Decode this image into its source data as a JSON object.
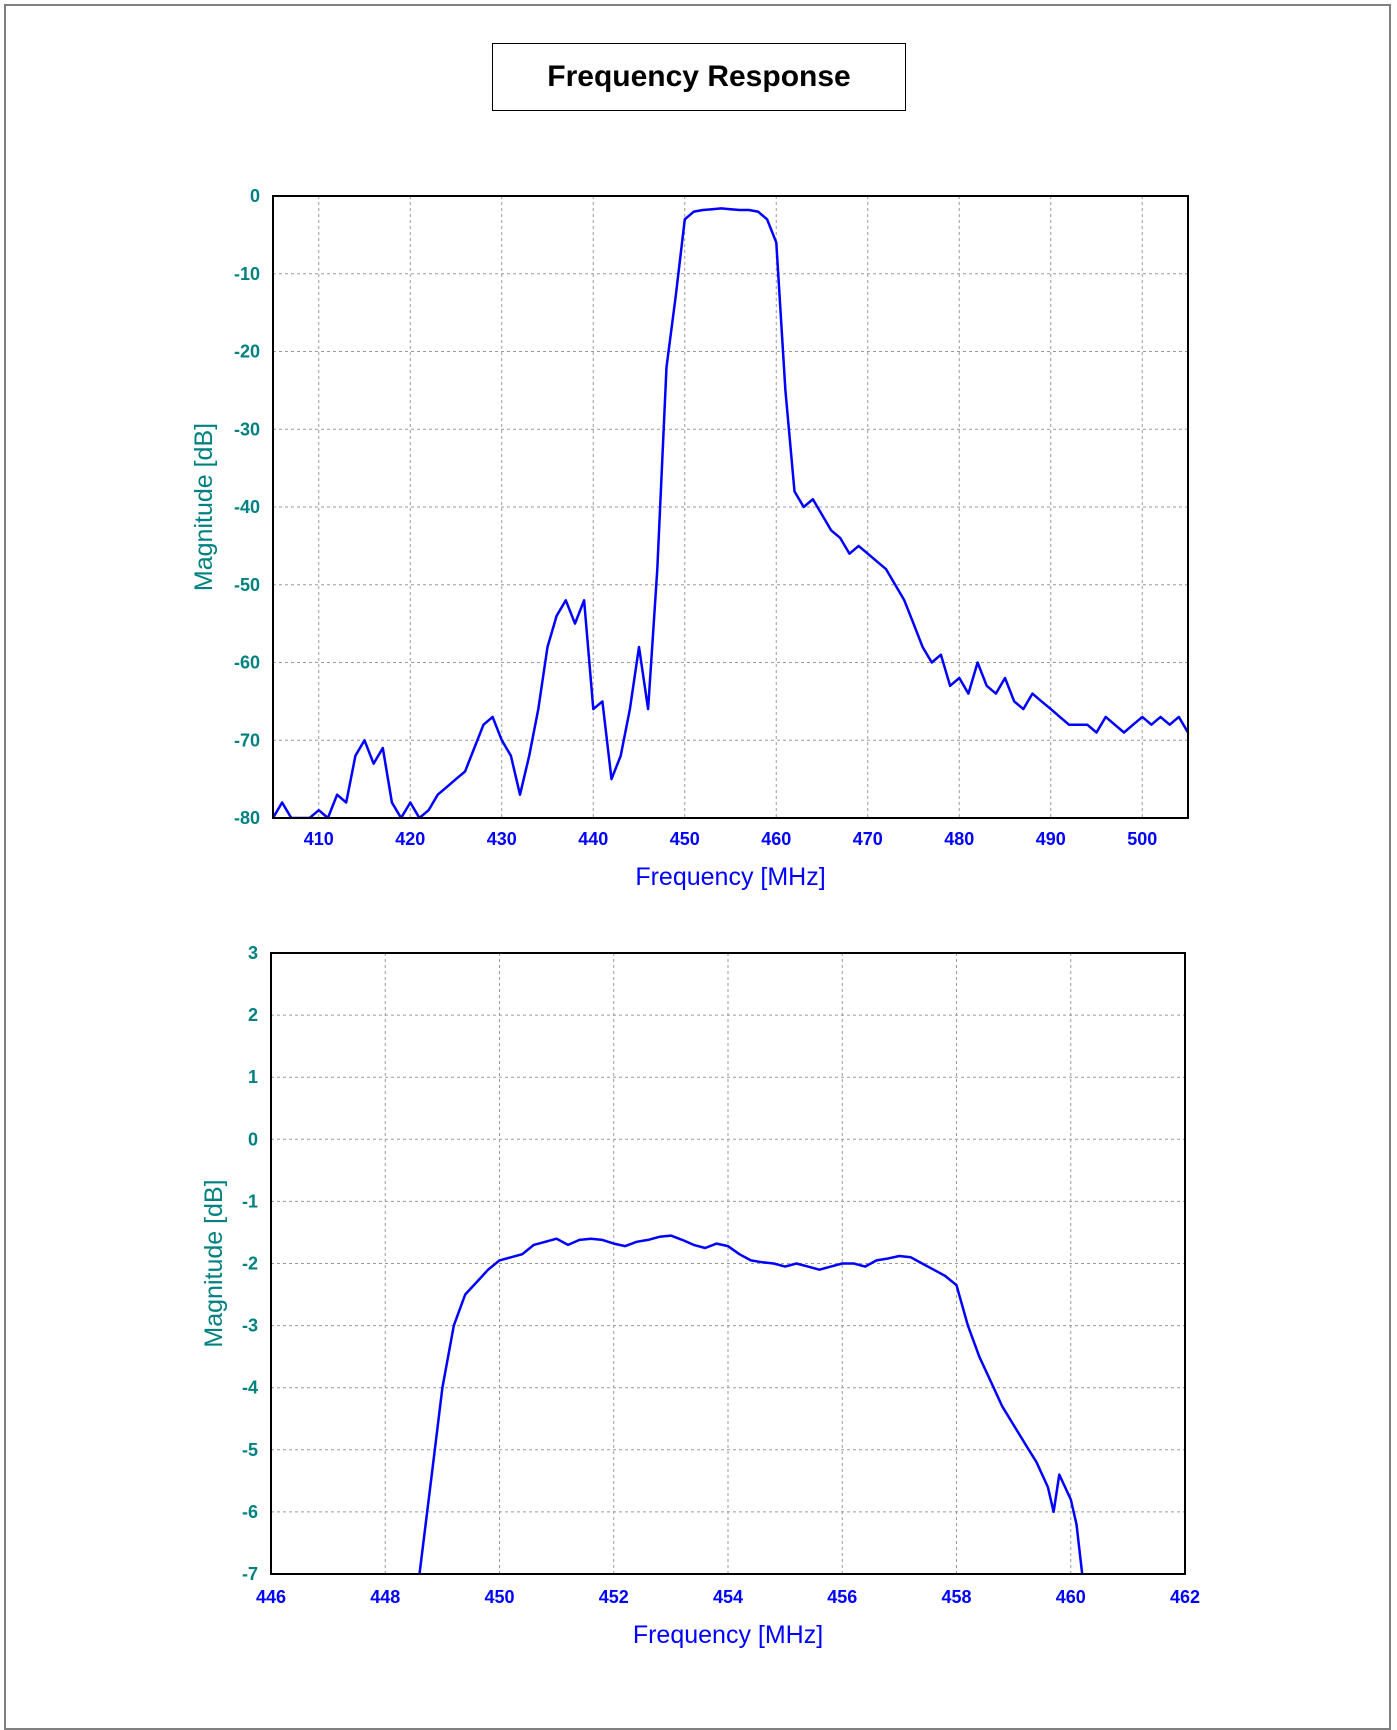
{
  "title": "Frequency Response",
  "colors": {
    "series": "#0000ff",
    "y_text": "#008080",
    "x_text": "#0000ff",
    "frame": "#808080"
  },
  "chart_data": [
    {
      "type": "line",
      "title": "",
      "xlabel": "Frequency [MHz]",
      "ylabel": "Magnitude [dB]",
      "xlim": [
        405,
        505
      ],
      "ylim": [
        -80,
        0
      ],
      "xticks": [
        410,
        420,
        430,
        440,
        450,
        460,
        470,
        480,
        490,
        500
      ],
      "yticks": [
        0,
        -10,
        -20,
        -30,
        -40,
        -50,
        -60,
        -70,
        -80
      ],
      "grid": true,
      "series": [
        {
          "x": [
            405,
            406,
            407,
            408,
            409,
            410,
            411,
            412,
            413,
            414,
            415,
            416,
            417,
            418,
            419,
            420,
            421,
            422,
            423,
            424,
            425,
            426,
            427,
            428,
            429,
            430,
            431,
            432,
            433,
            434,
            435,
            436,
            437,
            438,
            439,
            440,
            441,
            442,
            443,
            444,
            445,
            446,
            447,
            448,
            449,
            450,
            451,
            452,
            453,
            454,
            455,
            456,
            457,
            458,
            459,
            460,
            461,
            462,
            463,
            464,
            465,
            466,
            467,
            468,
            469,
            470,
            471,
            472,
            473,
            474,
            475,
            476,
            477,
            478,
            479,
            480,
            481,
            482,
            483,
            484,
            485,
            486,
            487,
            488,
            489,
            490,
            491,
            492,
            493,
            494,
            495,
            496,
            497,
            498,
            499,
            500,
            501,
            502,
            503,
            504,
            505
          ],
          "y": [
            -80,
            -78,
            -80,
            -80,
            -80,
            -79,
            -80,
            -77,
            -78,
            -72,
            -70,
            -73,
            -71,
            -78,
            -80,
            -78,
            -80,
            -79,
            -77,
            -76,
            -75,
            -74,
            -71,
            -68,
            -67,
            -70,
            -72,
            -77,
            -72,
            -66,
            -58,
            -54,
            -52,
            -55,
            -52,
            -66,
            -65,
            -75,
            -72,
            -66,
            -58,
            -66,
            -48,
            -22,
            -13,
            -3,
            -2,
            -1.8,
            -1.7,
            -1.6,
            -1.7,
            -1.8,
            -1.8,
            -2.0,
            -3.0,
            -6.0,
            -25,
            -38,
            -40,
            -39,
            -41,
            -43,
            -44,
            -46,
            -45,
            -46,
            -47,
            -48,
            -50,
            -52,
            -55,
            -58,
            -60,
            -59,
            -63,
            -62,
            -64,
            -60,
            -63,
            -64,
            -62,
            -65,
            -66,
            -64,
            -65,
            -66,
            -67,
            -68,
            -68,
            -68,
            -69,
            -67,
            -68,
            -69,
            -68,
            -67,
            -68,
            -67,
            -68,
            -67,
            -69
          ]
        }
      ]
    },
    {
      "type": "line",
      "title": "",
      "xlabel": "Frequency [MHz]",
      "ylabel": "Magnitude [dB]",
      "xlim": [
        446,
        462
      ],
      "ylim": [
        -7,
        3
      ],
      "xticks": [
        446,
        448,
        450,
        452,
        454,
        456,
        458,
        460,
        462
      ],
      "yticks": [
        3,
        2,
        1,
        0,
        -1,
        -2,
        -3,
        -4,
        -5,
        -6,
        -7
      ],
      "grid": true,
      "series": [
        {
          "x": [
            448.6,
            448.8,
            449.0,
            449.2,
            449.4,
            449.6,
            449.8,
            450.0,
            450.2,
            450.4,
            450.6,
            450.8,
            451.0,
            451.2,
            451.4,
            451.6,
            451.8,
            452.0,
            452.2,
            452.4,
            452.6,
            452.8,
            453.0,
            453.2,
            453.4,
            453.6,
            453.8,
            454.0,
            454.2,
            454.4,
            454.6,
            454.8,
            455.0,
            455.2,
            455.4,
            455.6,
            455.8,
            456.0,
            456.2,
            456.4,
            456.6,
            456.8,
            457.0,
            457.2,
            457.4,
            457.6,
            457.8,
            458.0,
            458.2,
            458.4,
            458.6,
            458.8,
            459.0,
            459.2,
            459.4,
            459.6,
            459.7,
            459.8,
            460.0,
            460.1,
            460.2
          ],
          "y": [
            -7.0,
            -5.5,
            -4.0,
            -3.0,
            -2.5,
            -2.3,
            -2.1,
            -1.95,
            -1.9,
            -1.85,
            -1.7,
            -1.65,
            -1.6,
            -1.7,
            -1.62,
            -1.6,
            -1.62,
            -1.68,
            -1.72,
            -1.65,
            -1.62,
            -1.57,
            -1.55,
            -1.62,
            -1.7,
            -1.75,
            -1.68,
            -1.72,
            -1.85,
            -1.95,
            -1.98,
            -2.0,
            -2.05,
            -2.0,
            -2.05,
            -2.1,
            -2.05,
            -2.0,
            -2.0,
            -2.05,
            -1.95,
            -1.92,
            -1.88,
            -1.9,
            -2.0,
            -2.1,
            -2.2,
            -2.35,
            -3.0,
            -3.5,
            -3.9,
            -4.3,
            -4.6,
            -4.9,
            -5.2,
            -5.6,
            -6.0,
            -5.4,
            -5.8,
            -6.2,
            -7.0
          ]
        }
      ]
    }
  ]
}
